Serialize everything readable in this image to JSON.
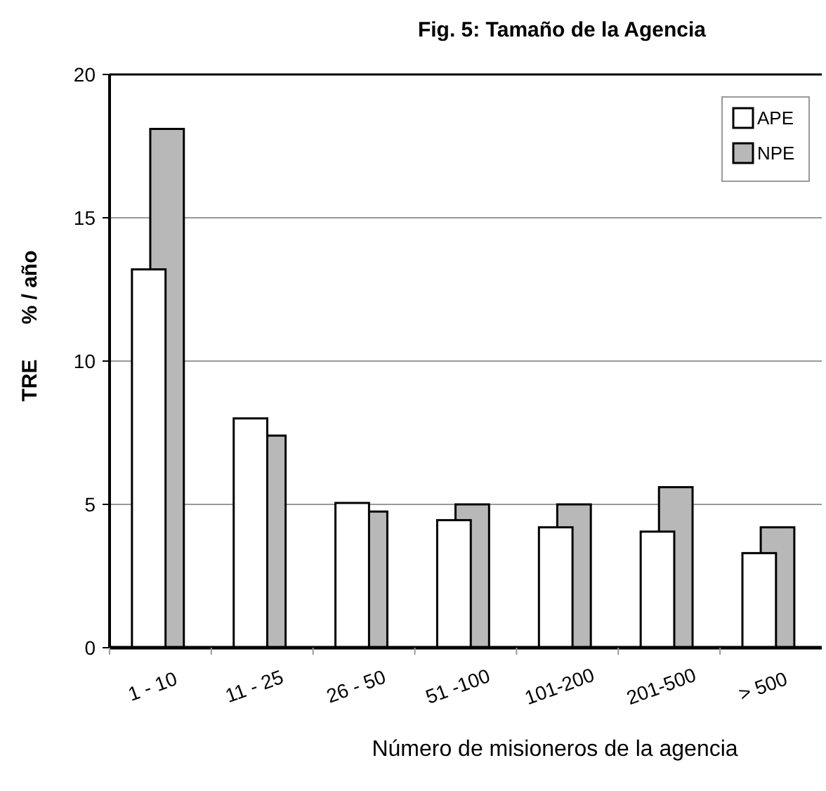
{
  "chart_data": {
    "type": "bar",
    "title": "Fig. 5:  Tamaño de la Agencia",
    "xlabel": "Número de misioneros de la agencia",
    "ylabel": "TRE      % / año",
    "categories": [
      "1 - 10",
      "11 - 25",
      "26 - 50",
      "51 -100",
      "101-200",
      "201-500",
      "> 500"
    ],
    "series": [
      {
        "name": "APE",
        "color": "#ffffff",
        "values": [
          13.2,
          8.0,
          5.05,
          4.45,
          4.2,
          4.05,
          3.3
        ]
      },
      {
        "name": "NPE",
        "color": "#b8b8b8",
        "values": [
          18.1,
          7.4,
          4.75,
          5.0,
          5.0,
          5.6,
          4.2
        ]
      }
    ],
    "ylim": [
      0,
      20
    ],
    "yticks": [
      0,
      5,
      10,
      15,
      20
    ],
    "grid": "y",
    "legend": "top right"
  }
}
